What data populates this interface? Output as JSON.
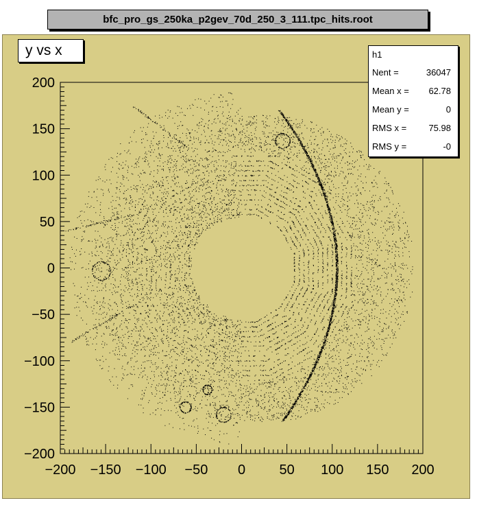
{
  "title": "bfc_pro_gs_250ka_p2gev_70d_250_3_111.tpc_hits.root",
  "histogram_label": "y vs x",
  "stats": {
    "name": "h1",
    "rows": [
      {
        "label": "Nent =",
        "value": "36047"
      },
      {
        "label": "Mean x =",
        "value": "62.78"
      },
      {
        "label": "Mean y =",
        "value": "0"
      },
      {
        "label": "RMS x =",
        "value": "75.98"
      },
      {
        "label": "RMS y =",
        "value": "-0"
      }
    ]
  },
  "colors": {
    "canvas": "#d8cd86",
    "frame": "#d8cd86",
    "points": "#000000"
  },
  "chart_data": {
    "type": "scatter",
    "title": "y vs x",
    "xlim": [
      -200,
      200
    ],
    "ylim": [
      -200,
      200
    ],
    "xticks": [
      -200,
      -150,
      -100,
      -50,
      0,
      50,
      100,
      150,
      200
    ],
    "yticks": [
      -200,
      -150,
      -100,
      -50,
      0,
      50,
      100,
      150,
      200
    ],
    "xtick_labels": [
      "−200",
      "−150",
      "−100",
      "−50",
      "0",
      "50",
      "100",
      "150",
      "200"
    ],
    "ytick_labels": [
      "−200",
      "−150",
      "−100",
      "−50",
      "0",
      "50",
      "100",
      "150",
      "200"
    ],
    "grid": false,
    "entries": 36047,
    "features": {
      "inner_hole_radius": 50,
      "inner_pad_rows": {
        "r_min": 60,
        "r_max": 125,
        "rows": 13,
        "sectors": 12
      },
      "outer_region_radius": 190,
      "dense_arc": {
        "x_at_y0": 105,
        "y_range": [
          -165,
          170
        ]
      },
      "rings": [
        {
          "cx": -155,
          "cy": -3,
          "r": 10
        },
        {
          "cx": -38,
          "cy": -131,
          "r": 5
        },
        {
          "cx": -62,
          "cy": -150,
          "r": 6
        },
        {
          "cx": -20,
          "cy": -158,
          "r": 8
        },
        {
          "cx": 45,
          "cy": 137,
          "r": 8
        }
      ],
      "streaks": [
        {
          "x1": -110,
          "y1": 60,
          "x2": -195,
          "y2": 40
        },
        {
          "x1": -120,
          "y1": -40,
          "x2": -190,
          "y2": -80
        },
        {
          "x1": -60,
          "y1": 130,
          "x2": -120,
          "y2": 175
        }
      ]
    }
  }
}
